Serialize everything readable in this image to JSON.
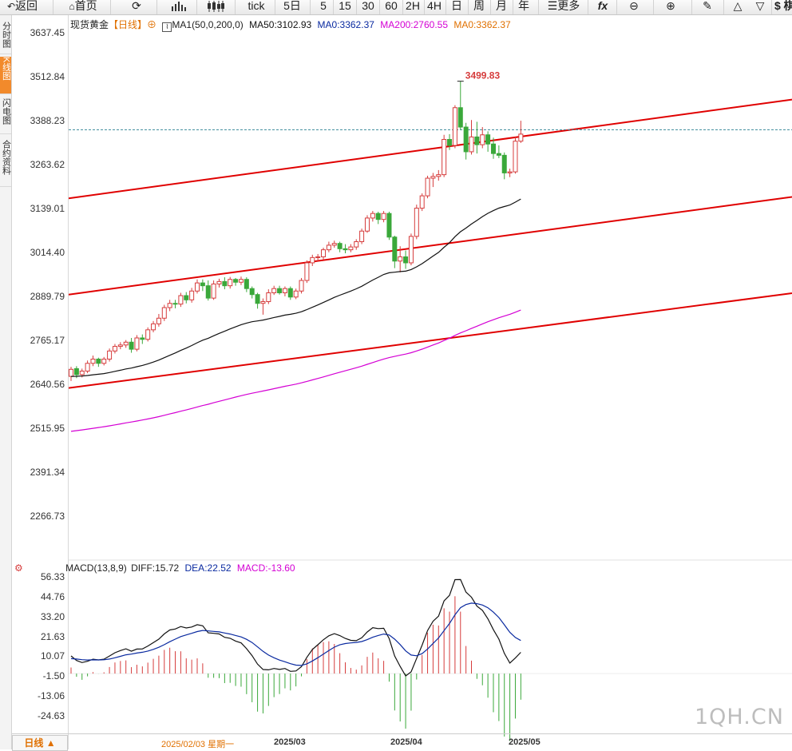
{
  "toolbar": {
    "back": "返回",
    "home": "首页",
    "tick": "tick",
    "periods": [
      "5日",
      "5",
      "15",
      "30",
      "60",
      "2H",
      "4H",
      "日",
      "周",
      "月",
      "年"
    ],
    "more": "更多",
    "fx": "fx",
    "cut": "$ 棋"
  },
  "side_tabs": [
    "分时图",
    "K线图",
    "闪电图",
    "合约资料"
  ],
  "active_side_tab": "K线图",
  "legend": {
    "name": "现货黄金",
    "period": "【日线】",
    "ma_def": "MA1(50,0,200,0)",
    "ma50": "MA50:3102.93",
    "ma0": "MA0:3362.37",
    "ma200": "MA200:2760.55",
    "ma0b": "MA0:3362.37"
  },
  "macd_legend": {
    "name": "MACD(13,8,9)",
    "diff": "DIFF:15.72",
    "dea": "DEA:22.52",
    "macd": "MACD:-13.60"
  },
  "price_axis": [
    "3637.45",
    "3512.84",
    "3388.23",
    "3263.62",
    "3139.01",
    "3014.40",
    "2889.79",
    "2765.17",
    "2640.56",
    "2515.95",
    "2391.34",
    "2266.73"
  ],
  "macd_axis": [
    "56.33",
    "44.76",
    "33.20",
    "21.63",
    "10.07",
    "-1.50",
    "-13.06",
    "-24.63"
  ],
  "x_labels": [
    "2025/02/03 星期一",
    "2025/03",
    "2025/04",
    "2025/05"
  ],
  "day_button": "日线 ▲",
  "watermark": "1QH.CN",
  "high_label": "3499.83",
  "colors": {
    "up": "#d63c3c",
    "down": "#3aa83a",
    "ma50": "#111111",
    "ma200": "#d400d4",
    "trend": "#e00000",
    "dash": "#3a8a9a"
  },
  "chart_data": {
    "type": "candlestick",
    "y_range": [
      2141,
      3700
    ],
    "last_price": 3362.37,
    "candles": [
      [
        2663,
        2683,
        2650,
        2690
      ],
      [
        2685,
        2668,
        2658,
        2692
      ],
      [
        2668,
        2678,
        2660,
        2685
      ],
      [
        2678,
        2700,
        2672,
        2708
      ],
      [
        2700,
        2712,
        2692,
        2722
      ],
      [
        2712,
        2700,
        2690,
        2716
      ],
      [
        2700,
        2712,
        2694,
        2718
      ],
      [
        2712,
        2735,
        2705,
        2742
      ],
      [
        2735,
        2748,
        2728,
        2755
      ],
      [
        2748,
        2752,
        2740,
        2760
      ],
      [
        2752,
        2760,
        2744,
        2766
      ],
      [
        2760,
        2740,
        2730,
        2772
      ],
      [
        2740,
        2772,
        2734,
        2780
      ],
      [
        2772,
        2768,
        2755,
        2782
      ],
      [
        2768,
        2795,
        2762,
        2802
      ],
      [
        2795,
        2812,
        2788,
        2820
      ],
      [
        2812,
        2828,
        2804,
        2840
      ],
      [
        2828,
        2858,
        2820,
        2866
      ],
      [
        2858,
        2870,
        2848,
        2880
      ],
      [
        2870,
        2868,
        2856,
        2880
      ],
      [
        2868,
        2892,
        2860,
        2900
      ],
      [
        2892,
        2880,
        2870,
        2902
      ],
      [
        2880,
        2905,
        2872,
        2914
      ],
      [
        2905,
        2928,
        2898,
        2938
      ],
      [
        2928,
        2920,
        2905,
        2938
      ],
      [
        2920,
        2885,
        2878,
        2935
      ],
      [
        2885,
        2925,
        2880,
        2935
      ],
      [
        2925,
        2932,
        2915,
        2940
      ],
      [
        2932,
        2920,
        2910,
        2944
      ],
      [
        2920,
        2938,
        2912,
        2945
      ],
      [
        2938,
        2930,
        2920,
        2942
      ],
      [
        2930,
        2938,
        2922,
        2946
      ],
      [
        2938,
        2912,
        2902,
        2944
      ],
      [
        2912,
        2895,
        2884,
        2918
      ],
      [
        2895,
        2870,
        2855,
        2900
      ],
      [
        2870,
        2875,
        2838,
        2884
      ],
      [
        2875,
        2900,
        2868,
        2910
      ],
      [
        2900,
        2912,
        2894,
        2920
      ],
      [
        2912,
        2900,
        2895,
        2920
      ],
      [
        2900,
        2912,
        2890,
        2918
      ],
      [
        2912,
        2888,
        2880,
        2918
      ],
      [
        2888,
        2905,
        2882,
        2912
      ],
      [
        2905,
        2935,
        2898,
        2942
      ],
      [
        2935,
        2985,
        2928,
        2992
      ],
      [
        2985,
        3000,
        2976,
        3008
      ],
      [
        3000,
        3002,
        2990,
        3010
      ],
      [
        3002,
        3022,
        2995,
        3028
      ],
      [
        3022,
        3035,
        3015,
        3045
      ],
      [
        3035,
        3040,
        3028,
        3048
      ],
      [
        3040,
        3025,
        3015,
        3045
      ],
      [
        3025,
        3022,
        3012,
        3038
      ],
      [
        3022,
        3030,
        3015,
        3038
      ],
      [
        3030,
        3045,
        3022,
        3052
      ],
      [
        3045,
        3075,
        3038,
        3082
      ],
      [
        3075,
        3112,
        3070,
        3120
      ],
      [
        3112,
        3125,
        3102,
        3132
      ],
      [
        3125,
        3108,
        3095,
        3130
      ],
      [
        3108,
        3125,
        3100,
        3132
      ],
      [
        3125,
        3058,
        3050,
        3130
      ],
      [
        3058,
        2990,
        2970,
        3062
      ],
      [
        2990,
        3002,
        2958,
        3032
      ],
      [
        3002,
        2985,
        2968,
        3020
      ],
      [
        2985,
        3060,
        2978,
        3068
      ],
      [
        3060,
        3140,
        3052,
        3150
      ],
      [
        3140,
        3175,
        3132,
        3182
      ],
      [
        3175,
        3225,
        3168,
        3232
      ],
      [
        3225,
        3230,
        3200,
        3240
      ],
      [
        3230,
        3235,
        3218,
        3248
      ],
      [
        3235,
        3335,
        3228,
        3348
      ],
      [
        3335,
        3318,
        3305,
        3350
      ],
      [
        3318,
        3425,
        3310,
        3432
      ],
      [
        3425,
        3370,
        3362,
        3500
      ],
      [
        3370,
        3300,
        3278,
        3382
      ],
      [
        3300,
        3342,
        3292,
        3390
      ],
      [
        3342,
        3320,
        3295,
        3385
      ],
      [
        3320,
        3348,
        3310,
        3370
      ],
      [
        3348,
        3322,
        3300,
        3358
      ],
      [
        3322,
        3295,
        3280,
        3340
      ],
      [
        3295,
        3290,
        3282,
        3318
      ],
      [
        3290,
        3240,
        3222,
        3298
      ],
      [
        3240,
        3243,
        3228,
        3252
      ],
      [
        3243,
        3330,
        3238,
        3342
      ],
      [
        3330,
        3350,
        3325,
        3388
      ]
    ],
    "ma50_start": 2662,
    "ma200_start": 2505,
    "trend_lines": [
      {
        "from": [
          0,
          3168
        ],
        "to": [
          1,
          3448
        ]
      },
      {
        "from": [
          0,
          2895
        ],
        "to": [
          1,
          3172
        ]
      },
      {
        "from": [
          0,
          2630
        ],
        "to": [
          1,
          2899
        ]
      }
    ],
    "macd_range": [
      -30,
      60
    ]
  }
}
